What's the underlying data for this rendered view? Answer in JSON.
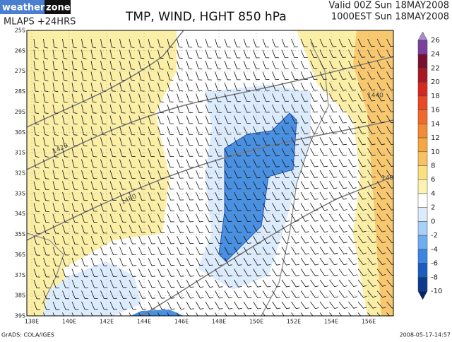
{
  "logo": {
    "part1": "weather",
    "part2": "zone"
  },
  "header": {
    "model": "MLAPS +24HRS",
    "title": "TMP, WIND, HGHT 850 hPa",
    "valid": "Valid 00Z Sun 18MAY2008",
    "local": "1000EST Sun 18MAY2008"
  },
  "lat_labels": [
    "25S",
    "26S",
    "27S",
    "28S",
    "29S",
    "30S",
    "31S",
    "32S",
    "33S",
    "34S",
    "35S",
    "36S",
    "37S",
    "38S",
    "39S"
  ],
  "lon_labels": [
    "138E",
    "140E",
    "142E",
    "144E",
    "146E",
    "148E",
    "150E",
    "152E",
    "154E",
    "156E"
  ],
  "contour_labels": [
    "1440",
    "1420",
    "1480",
    "140"
  ],
  "colorbar": {
    "levels": [
      26,
      24,
      22,
      20,
      18,
      16,
      14,
      12,
      10,
      8,
      6,
      4,
      2,
      0,
      -2,
      -4,
      -6,
      -8,
      -10
    ],
    "colors": [
      "#a78bd0",
      "#7b3f9e",
      "#7a1030",
      "#a81822",
      "#d42820",
      "#e84a24",
      "#f06a2a",
      "#f48a34",
      "#f6a840",
      "#f8c260",
      "#fbe07e",
      "#fdf3b0",
      "#ffffff",
      "#dcecfc",
      "#a8d0f8",
      "#6eaef0",
      "#3a86e0",
      "#1a5cc0",
      "#0c3a8e",
      "#06246a"
    ]
  },
  "footer": {
    "credit": "GrADS: COLA/IGES",
    "timestamp": "2008-05-17-14:57"
  }
}
